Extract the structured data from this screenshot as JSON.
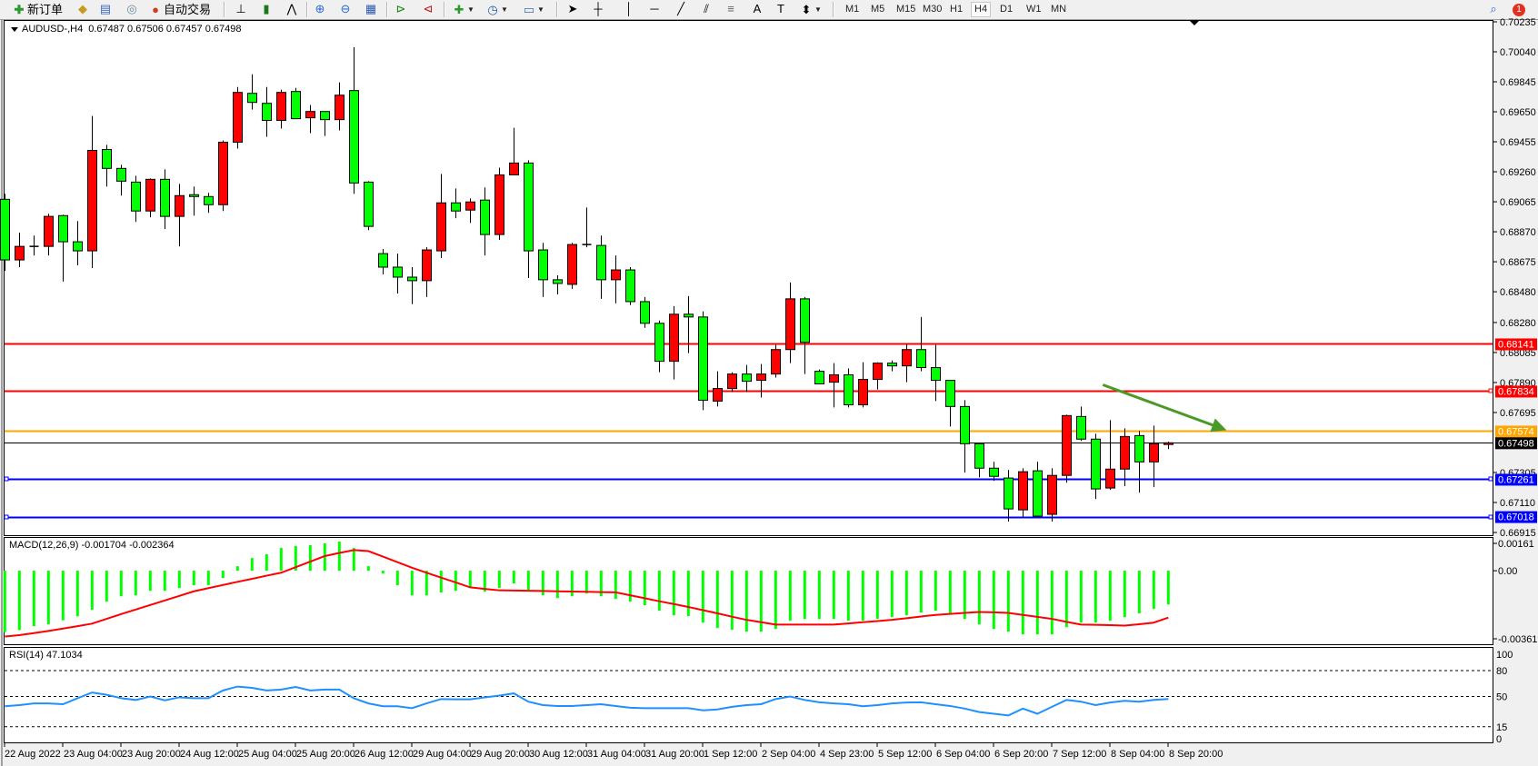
{
  "toolbar": {
    "new_order_label": "新订单",
    "auto_trading_label": "自动交易",
    "timeframes": [
      "M1",
      "M5",
      "M15",
      "M30",
      "H1",
      "H4",
      "D1",
      "W1",
      "MN"
    ],
    "active_timeframe": "H4",
    "notification_count": "1",
    "tools": [
      "market-watch-icon",
      "data-window-icon",
      "navigator-icon",
      "bar-chart-icon",
      "candlestick-icon",
      "line-chart-icon",
      "zoom-in-icon",
      "zoom-out-icon",
      "tile-windows-icon",
      "auto-scroll-icon",
      "chart-shift-icon",
      "indicators-icon",
      "periods-icon",
      "templates-icon",
      "cursor-icon",
      "crosshair-icon",
      "vertical-line-icon",
      "horizontal-line-icon",
      "trendline-icon",
      "equidistant-channel-icon",
      "fibonacci-icon",
      "text-icon",
      "text-label-icon",
      "arrows-icon"
    ]
  },
  "chart_data": [
    {
      "type": "candlestick",
      "title": "AUDUSD-,H4",
      "ohlc_readout": "0.67487 0.67506 0.67457 0.67498",
      "colors": {
        "up": "#ff0000",
        "down": "#00ff00",
        "outline": "#000000"
      },
      "ylim": [
        0.66915,
        0.70235
      ],
      "y_ticks": [
        "0.70235",
        "0.70040",
        "0.69845",
        "0.69650",
        "0.69455",
        "0.69260",
        "0.69065",
        "0.68870",
        "0.68675",
        "0.68480",
        "0.68280",
        "0.68085",
        "0.67890",
        "0.67695",
        "0.67305",
        "0.67110",
        "0.66915"
      ],
      "time_labels": [
        "22 Aug 2022",
        "23 Aug 04:00",
        "23 Aug 20:00",
        "24 Aug 12:00",
        "25 Aug 04:00",
        "25 Aug 20:00",
        "26 Aug 12:00",
        "29 Aug 04:00",
        "29 Aug 20:00",
        "30 Aug 12:00",
        "31 Aug 04:00",
        "31 Aug 20:00",
        "1 Sep 12:00",
        "2 Sep 04:00",
        "4 Sep 23:00",
        "5 Sep 12:00",
        "6 Sep 04:00",
        "6 Sep 20:00",
        "7 Sep 12:00",
        "8 Sep 04:00",
        "8 Sep 20:00"
      ],
      "ohlc": [
        [
          0.69081,
          0.69117,
          0.68616,
          0.68687
        ],
        [
          0.68687,
          0.68864,
          0.6864,
          0.68775
        ],
        [
          0.68769,
          0.68846,
          0.68716,
          0.68775
        ],
        [
          0.68775,
          0.68987,
          0.68716,
          0.6897
        ],
        [
          0.68975,
          0.68981,
          0.68546,
          0.68805
        ],
        [
          0.68805,
          0.6894,
          0.68652,
          0.68746
        ],
        [
          0.68746,
          0.69623,
          0.68634,
          0.69399
        ],
        [
          0.69405,
          0.69435,
          0.69164,
          0.69282
        ],
        [
          0.69282,
          0.69305,
          0.69105,
          0.69199
        ],
        [
          0.69193,
          0.69234,
          0.68934,
          0.69005
        ],
        [
          0.69005,
          0.69217,
          0.68964,
          0.69211
        ],
        [
          0.69211,
          0.69276,
          0.68887,
          0.6897
        ],
        [
          0.6897,
          0.69181,
          0.68775,
          0.69105
        ],
        [
          0.69111,
          0.69164,
          0.68975,
          0.69099
        ],
        [
          0.69099,
          0.69123,
          0.68993,
          0.69046
        ],
        [
          0.69046,
          0.69464,
          0.69005,
          0.69452
        ],
        [
          0.69452,
          0.69811,
          0.69411,
          0.69776
        ],
        [
          0.6977,
          0.69894,
          0.69664,
          0.69711
        ],
        [
          0.69705,
          0.69811,
          0.69488,
          0.69594
        ],
        [
          0.69594,
          0.69794,
          0.69541,
          0.69776
        ],
        [
          0.69782,
          0.69805,
          0.69605,
          0.69605
        ],
        [
          0.69611,
          0.69694,
          0.69511,
          0.69652
        ],
        [
          0.69652,
          0.69652,
          0.69493,
          0.69599
        ],
        [
          0.69599,
          0.69841,
          0.69529,
          0.69758
        ],
        [
          0.69788,
          0.7007,
          0.69117,
          0.69187
        ],
        [
          0.69193,
          0.69199,
          0.68881,
          0.68905
        ],
        [
          0.68728,
          0.68758,
          0.68593,
          0.6864
        ],
        [
          0.6864,
          0.68728,
          0.68469,
          0.68575
        ],
        [
          0.68575,
          0.6864,
          0.68399,
          0.68552
        ],
        [
          0.68552,
          0.68769,
          0.68446,
          0.68752
        ],
        [
          0.68746,
          0.69246,
          0.68699,
          0.69058
        ],
        [
          0.69058,
          0.69152,
          0.68958,
          0.69005
        ],
        [
          0.69011,
          0.69087,
          0.68928,
          0.69064
        ],
        [
          0.69076,
          0.69158,
          0.68716,
          0.68852
        ],
        [
          0.68852,
          0.69287,
          0.68817,
          0.6924
        ],
        [
          0.6924,
          0.69546,
          0.6924,
          0.69317
        ],
        [
          0.69317,
          0.69335,
          0.68569,
          0.68746
        ],
        [
          0.68752,
          0.68799,
          0.68446,
          0.68558
        ],
        [
          0.68558,
          0.68587,
          0.68463,
          0.68534
        ],
        [
          0.68528,
          0.68799,
          0.68499,
          0.68787
        ],
        [
          0.68787,
          0.69028,
          0.68769,
          0.68781
        ],
        [
          0.68781,
          0.68846,
          0.68434,
          0.68558
        ],
        [
          0.68558,
          0.68716,
          0.68405,
          0.68622
        ],
        [
          0.68622,
          0.6864,
          0.68393,
          0.68416
        ],
        [
          0.68416,
          0.68446,
          0.68246,
          0.68275
        ],
        [
          0.68275,
          0.68293,
          0.67957,
          0.68028
        ],
        [
          0.68028,
          0.68387,
          0.6791,
          0.68334
        ],
        [
          0.68334,
          0.68452,
          0.68081,
          0.68316
        ],
        [
          0.68316,
          0.68352,
          0.6771,
          0.67775
        ],
        [
          0.67769,
          0.67963,
          0.67734,
          0.67851
        ],
        [
          0.67851,
          0.67957,
          0.67828,
          0.67945
        ],
        [
          0.67945,
          0.68004,
          0.67828,
          0.67898
        ],
        [
          0.67904,
          0.6801,
          0.67792,
          0.67945
        ],
        [
          0.67945,
          0.68134,
          0.67922,
          0.68104
        ],
        [
          0.68104,
          0.6854,
          0.68016,
          0.68434
        ],
        [
          0.68434,
          0.68446,
          0.67945,
          0.68151
        ],
        [
          0.67963,
          0.67975,
          0.67881,
          0.67881
        ],
        [
          0.67892,
          0.68016,
          0.67728,
          0.6794
        ],
        [
          0.6794,
          0.67981,
          0.67728,
          0.67745
        ],
        [
          0.67745,
          0.68022,
          0.67728,
          0.6791
        ],
        [
          0.6791,
          0.68022,
          0.67845,
          0.68016
        ],
        [
          0.68016,
          0.68034,
          0.67963,
          0.67998
        ],
        [
          0.67998,
          0.6814,
          0.67892,
          0.68104
        ],
        [
          0.68104,
          0.68316,
          0.67963,
          0.67987
        ],
        [
          0.67987,
          0.68134,
          0.67769,
          0.67904
        ],
        [
          0.67904,
          0.67904,
          0.67604,
          0.67734
        ],
        [
          0.67734,
          0.67775,
          0.67304,
          0.67492
        ],
        [
          0.67492,
          0.67498,
          0.67274,
          0.67333
        ],
        [
          0.67333,
          0.67374,
          0.67251,
          0.6728
        ],
        [
          0.67269,
          0.67322,
          0.66986,
          0.67068
        ],
        [
          0.67062,
          0.67333,
          0.6701,
          0.6731
        ],
        [
          0.67316,
          0.67374,
          0.67015,
          0.67021
        ],
        [
          0.67033,
          0.67333,
          0.66986,
          0.67286
        ],
        [
          0.67286,
          0.67681,
          0.67239,
          0.67675
        ],
        [
          0.67669,
          0.67734,
          0.6751,
          0.67522
        ],
        [
          0.67522,
          0.67557,
          0.67133,
          0.67198
        ],
        [
          0.67204,
          0.67645,
          0.67192,
          0.67327
        ],
        [
          0.67327,
          0.67592,
          0.67216,
          0.67539
        ],
        [
          0.67545,
          0.67575,
          0.67174,
          0.67374
        ],
        [
          0.67374,
          0.6761,
          0.6721,
          0.67492
        ],
        [
          0.67487,
          0.67506,
          0.67457,
          0.67498
        ]
      ],
      "horizontal_lines": [
        {
          "price": 0.68141,
          "label": "0.68141",
          "color": "#ff0000"
        },
        {
          "price": 0.67834,
          "label": "0.67834",
          "color": "#ff0000"
        },
        {
          "price": 0.67574,
          "label": "0.67574",
          "color": "#ffa500"
        },
        {
          "price": 0.67261,
          "label": "0.67261",
          "color": "#0000ff"
        },
        {
          "price": 0.67018,
          "label": "0.67018",
          "color": "#0000ff"
        }
      ],
      "current_price": {
        "price": 0.67498,
        "label": "0.67498",
        "color": "#000000"
      },
      "arrow_annotation": {
        "color": "#4a9a2a",
        "start": {
          "bar": 75.5,
          "price": 0.67875
        },
        "end": {
          "bar": 84,
          "price": 0.6758
        }
      }
    },
    {
      "type": "bar+line",
      "title": "MACD(12,26,9) -0.001704 -0.002364",
      "ylim": [
        -0.003619,
        0.00161
      ],
      "y_ticks": [
        "0.00161",
        "0.00",
        "-0.003619"
      ],
      "colors": {
        "histogram": "#00ff00",
        "signal": "#ff0000"
      },
      "macd": [
        -0.0031,
        -0.003,
        -0.0028,
        -0.0027,
        -0.0025,
        -0.0023,
        -0.00197,
        -0.00156,
        -0.00129,
        -0.00124,
        -0.00101,
        -0.00101,
        -0.00087,
        -0.00073,
        -0.00073,
        -0.00037,
        0.00023,
        0.00064,
        0.00083,
        0.00115,
        0.00124,
        0.00129,
        0.00138,
        0.00147,
        0.00115,
        0.00023,
        -0.00014,
        -0.00073,
        -0.00124,
        -0.00124,
        -0.0011,
        -0.00101,
        -0.00087,
        -0.00106,
        -0.00087,
        -0.00064,
        -0.00096,
        -0.00124,
        -0.00138,
        -0.00129,
        -0.00115,
        -0.00129,
        -0.00142,
        -0.00156,
        -0.00174,
        -0.00202,
        -0.00225,
        -0.00229,
        -0.00262,
        -0.00289,
        -0.00298,
        -0.00307,
        -0.00307,
        -0.00294,
        -0.00252,
        -0.00243,
        -0.00243,
        -0.00243,
        -0.00252,
        -0.00252,
        -0.00243,
        -0.00234,
        -0.00225,
        -0.00211,
        -0.00202,
        -0.00215,
        -0.00243,
        -0.00271,
        -0.00294,
        -0.00307,
        -0.00321,
        -0.00321,
        -0.00321,
        -0.00285,
        -0.00262,
        -0.00262,
        -0.00252,
        -0.00234,
        -0.00215,
        -0.00193,
        -0.001704
      ],
      "signal": [
        -0.00332,
        -0.00325,
        -0.00315,
        -0.00304,
        -0.00292,
        -0.0028,
        -0.00267,
        -0.00243,
        -0.00219,
        -0.00196,
        -0.00173,
        -0.0015,
        -0.00127,
        -0.00104,
        -0.00088,
        -0.00072,
        -0.00056,
        -0.00041,
        -0.00025,
        -0.0001,
        0.00018,
        0.00046,
        0.00074,
        0.0009,
        0.00104,
        0.00099,
        0.00071,
        0.00043,
        0.00015,
        -0.0001,
        -0.00035,
        -0.00059,
        -0.00084,
        -0.00092,
        -0.00099,
        -0.001,
        -0.00101,
        -0.00102,
        -0.00104,
        -0.00105,
        -0.00106,
        -0.00108,
        -0.00109,
        -0.00124,
        -0.00139,
        -0.00154,
        -0.00168,
        -0.00183,
        -0.00199,
        -0.00215,
        -0.00232,
        -0.00248,
        -0.0026,
        -0.00272,
        -0.00272,
        -0.00272,
        -0.00272,
        -0.00272,
        -0.00266,
        -0.0026,
        -0.00254,
        -0.00248,
        -0.0024,
        -0.00231,
        -0.00223,
        -0.00218,
        -0.00213,
        -0.00208,
        -0.0021,
        -0.00213,
        -0.00223,
        -0.00233,
        -0.00243,
        -0.00258,
        -0.00272,
        -0.00273,
        -0.00275,
        -0.00277,
        -0.0027,
        -0.00262,
        -0.002364
      ]
    },
    {
      "type": "line",
      "title": "RSI(14) 47.1034",
      "ylim": [
        0,
        100
      ],
      "y_ticks": [
        "100",
        "80",
        "50",
        "15",
        "0"
      ],
      "levels": [
        80,
        50,
        15
      ],
      "color": "#1e90ff",
      "values": [
        38.7,
        40,
        42,
        42,
        41,
        48,
        54.6,
        52,
        48,
        46,
        50,
        45.6,
        49,
        48,
        48,
        57,
        61.5,
        60,
        57,
        58,
        61,
        57,
        58,
        58,
        47.9,
        42,
        38.7,
        38.7,
        36.5,
        42,
        47,
        46.7,
        46.7,
        49,
        51,
        53.6,
        44,
        40,
        39,
        39,
        40,
        41.1,
        39,
        37,
        36.5,
        36.5,
        36.5,
        36.5,
        34,
        35,
        38,
        40,
        41.1,
        47,
        50,
        46,
        43.3,
        42,
        41,
        38.7,
        40,
        42,
        43,
        43.3,
        41,
        39,
        36,
        32,
        30,
        28,
        36,
        30,
        38,
        46,
        44,
        40,
        43,
        45,
        44,
        46,
        47.1034
      ]
    }
  ]
}
